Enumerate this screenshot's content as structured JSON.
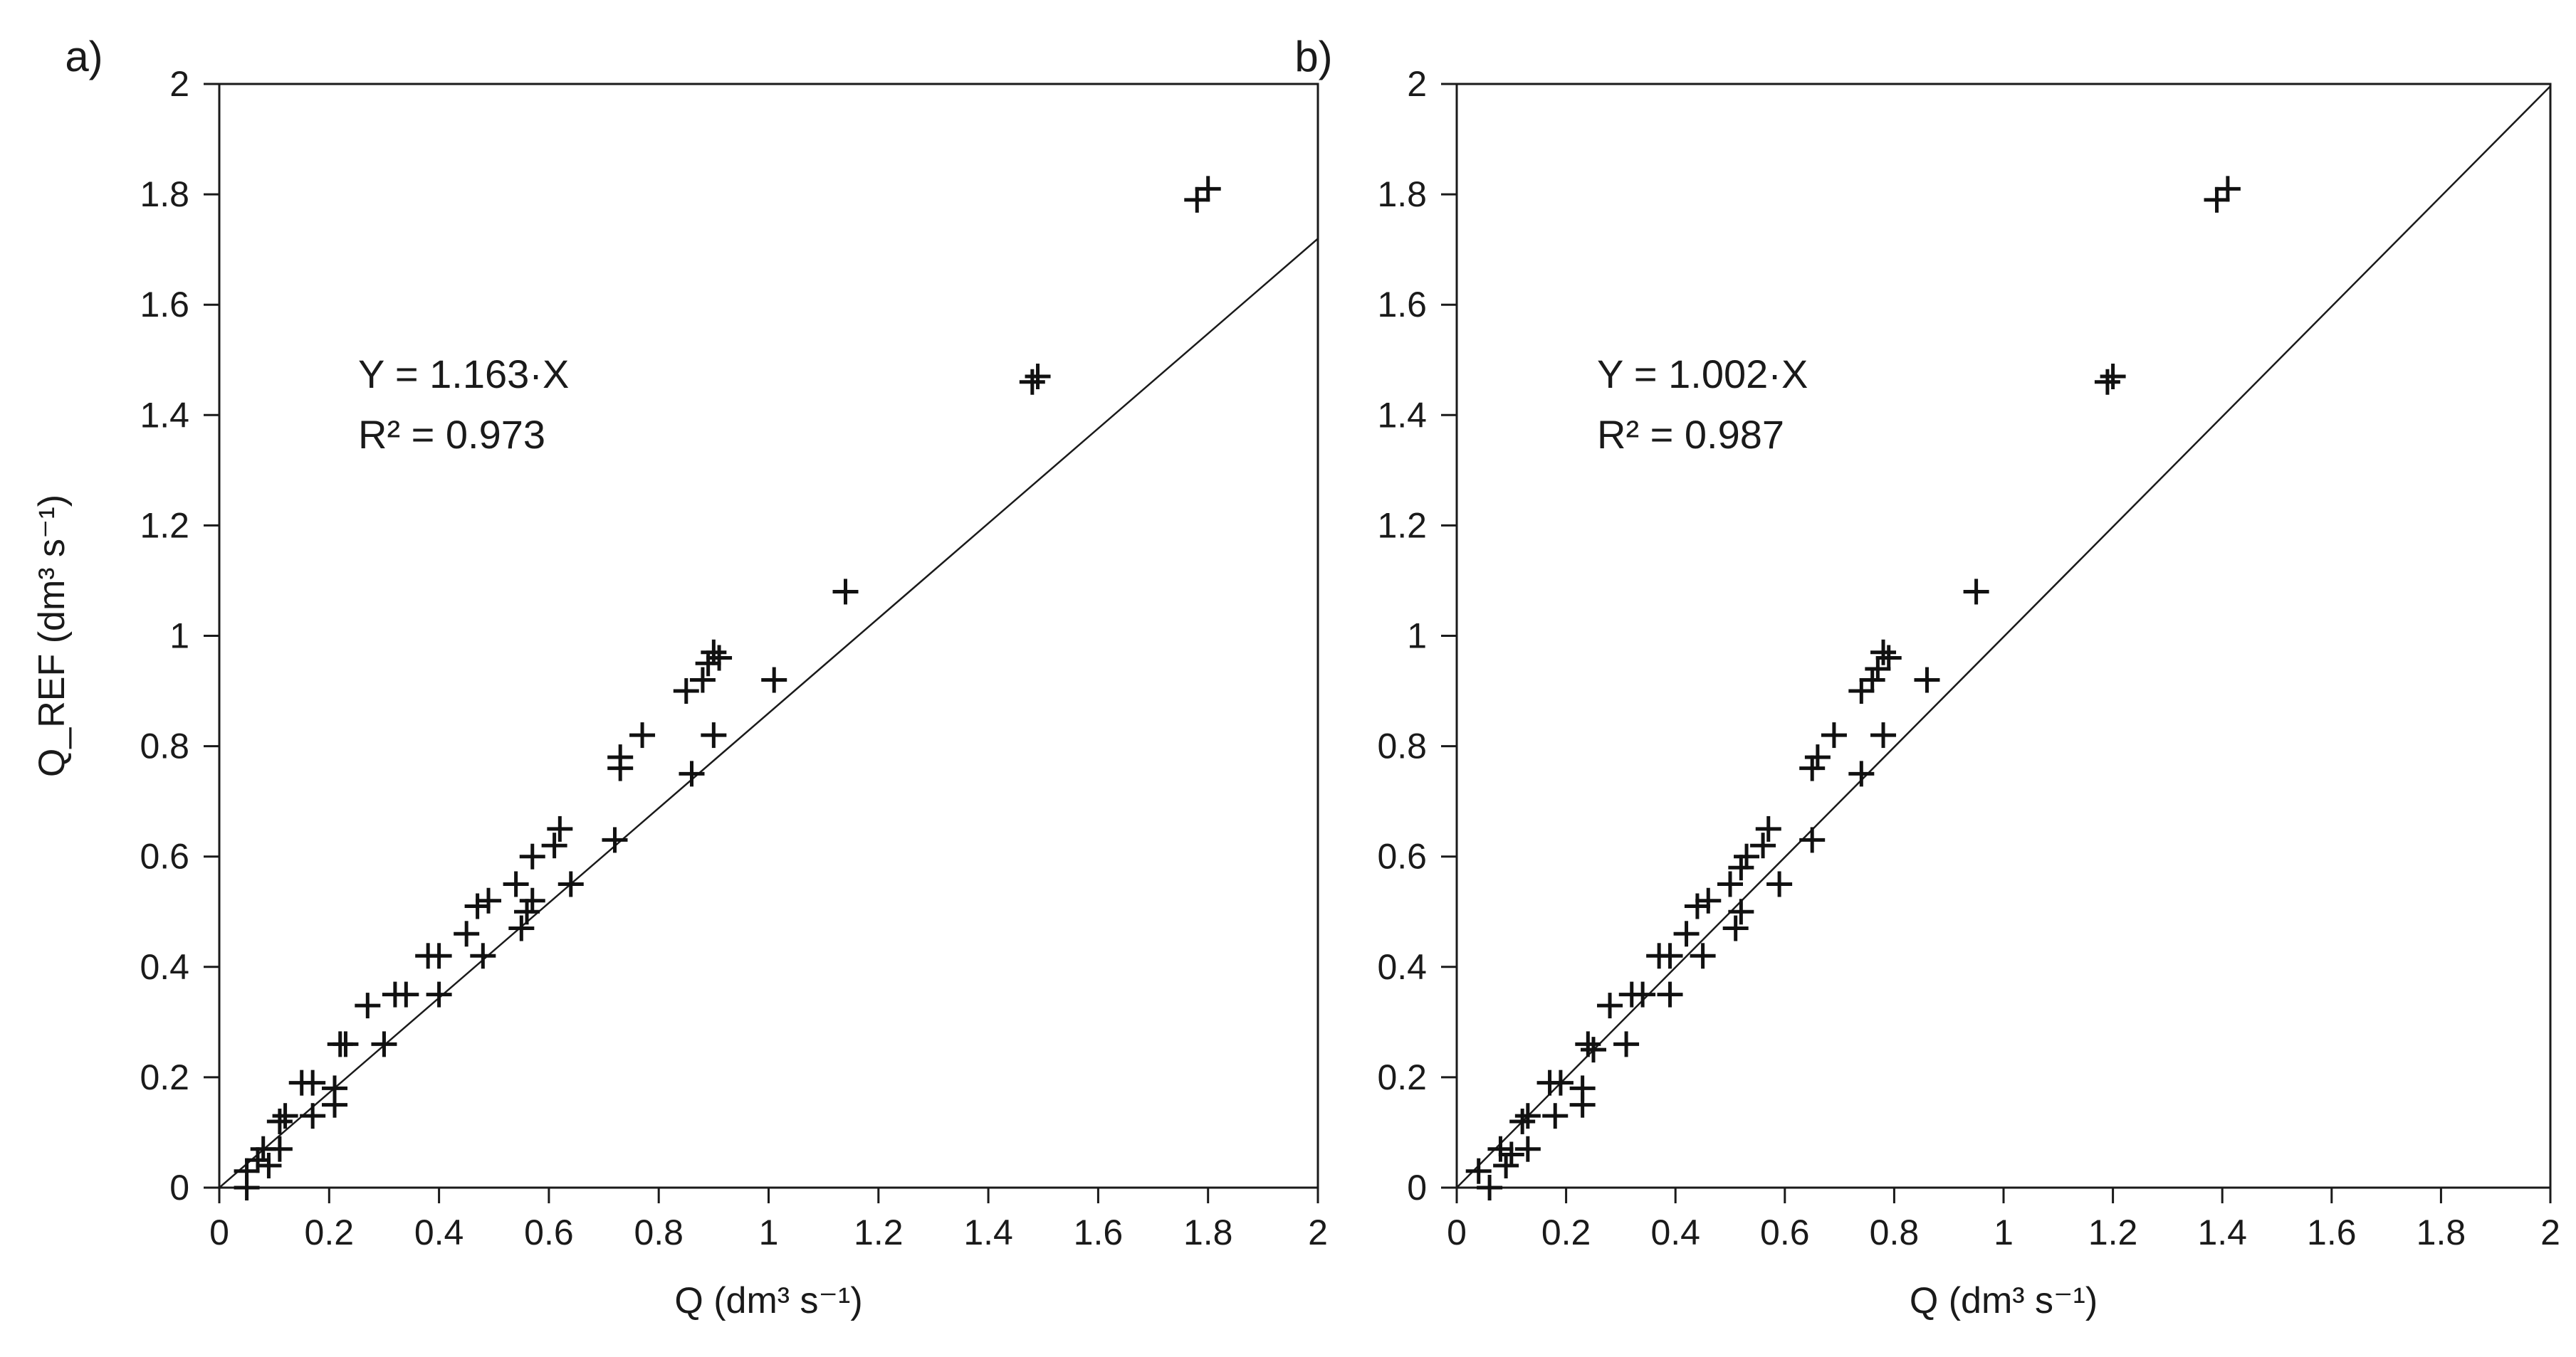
{
  "chart_data": [
    {
      "type": "scatter",
      "panel_label": "a)",
      "xlabel": "Q (dm³ s⁻¹)",
      "ylabel": "Q_REF (dm³ s⁻¹)",
      "xlim": [
        0,
        2
      ],
      "ylim": [
        0,
        2
      ],
      "xticks": [
        "0",
        "0.2",
        "0.4",
        "0.6",
        "0.8",
        "1",
        "1.2",
        "1.4",
        "1.6",
        "1.8",
        "2"
      ],
      "yticks": [
        "0",
        "0.2",
        "0.4",
        "0.6",
        "0.8",
        "1",
        "1.2",
        "1.4",
        "1.6",
        "1.8",
        "2"
      ],
      "grid": false,
      "fit_slope": 1.163,
      "annotations": [
        "Y = 1.163·X",
        "R² = 0.973"
      ],
      "points": [
        [
          0.05,
          0.0
        ],
        [
          0.05,
          0.03
        ],
        [
          0.07,
          0.05
        ],
        [
          0.08,
          0.07
        ],
        [
          0.09,
          0.04
        ],
        [
          0.11,
          0.07
        ],
        [
          0.11,
          0.12
        ],
        [
          0.12,
          0.13
        ],
        [
          0.15,
          0.19
        ],
        [
          0.17,
          0.13
        ],
        [
          0.17,
          0.19
        ],
        [
          0.21,
          0.15
        ],
        [
          0.21,
          0.18
        ],
        [
          0.22,
          0.26
        ],
        [
          0.23,
          0.26
        ],
        [
          0.27,
          0.33
        ],
        [
          0.3,
          0.26
        ],
        [
          0.32,
          0.35
        ],
        [
          0.34,
          0.35
        ],
        [
          0.38,
          0.42
        ],
        [
          0.4,
          0.42
        ],
        [
          0.4,
          0.35
        ],
        [
          0.45,
          0.46
        ],
        [
          0.47,
          0.51
        ],
        [
          0.48,
          0.42
        ],
        [
          0.49,
          0.52
        ],
        [
          0.54,
          0.55
        ],
        [
          0.55,
          0.47
        ],
        [
          0.56,
          0.5
        ],
        [
          0.57,
          0.52
        ],
        [
          0.57,
          0.6
        ],
        [
          0.61,
          0.62
        ],
        [
          0.62,
          0.65
        ],
        [
          0.64,
          0.55
        ],
        [
          0.72,
          0.63
        ],
        [
          0.73,
          0.76
        ],
        [
          0.73,
          0.78
        ],
        [
          0.77,
          0.82
        ],
        [
          0.85,
          0.9
        ],
        [
          0.86,
          0.75
        ],
        [
          0.88,
          0.92
        ],
        [
          0.89,
          0.95
        ],
        [
          0.9,
          0.97
        ],
        [
          0.9,
          0.82
        ],
        [
          0.91,
          0.96
        ],
        [
          1.01,
          0.92
        ],
        [
          1.14,
          1.08
        ],
        [
          1.48,
          1.46
        ],
        [
          1.49,
          1.47
        ],
        [
          1.78,
          1.79
        ],
        [
          1.8,
          1.81
        ]
      ]
    },
    {
      "type": "scatter",
      "panel_label": "b)",
      "xlabel": "Q (dm³ s⁻¹)",
      "ylabel": "",
      "xlim": [
        0,
        2
      ],
      "ylim": [
        0,
        2
      ],
      "xticks": [
        "0",
        "0.2",
        "0.4",
        "0.6",
        "0.8",
        "1",
        "1.2",
        "1.4",
        "1.6",
        "1.8",
        "2"
      ],
      "yticks": [
        "0",
        "0.2",
        "0.4",
        "0.6",
        "0.8",
        "1",
        "1.2",
        "1.4",
        "1.6",
        "1.8",
        "2"
      ],
      "grid": false,
      "fit_slope": 1.002,
      "annotations": [
        "Y = 1.002·X",
        "R² = 0.987"
      ],
      "points": [
        [
          0.04,
          0.03
        ],
        [
          0.06,
          0.0
        ],
        [
          0.08,
          0.07
        ],
        [
          0.09,
          0.04
        ],
        [
          0.1,
          0.06
        ],
        [
          0.12,
          0.12
        ],
        [
          0.13,
          0.13
        ],
        [
          0.13,
          0.07
        ],
        [
          0.17,
          0.19
        ],
        [
          0.18,
          0.13
        ],
        [
          0.19,
          0.19
        ],
        [
          0.23,
          0.15
        ],
        [
          0.23,
          0.18
        ],
        [
          0.24,
          0.26
        ],
        [
          0.25,
          0.25
        ],
        [
          0.28,
          0.33
        ],
        [
          0.31,
          0.26
        ],
        [
          0.32,
          0.35
        ],
        [
          0.34,
          0.35
        ],
        [
          0.37,
          0.42
        ],
        [
          0.39,
          0.42
        ],
        [
          0.39,
          0.35
        ],
        [
          0.42,
          0.46
        ],
        [
          0.44,
          0.51
        ],
        [
          0.45,
          0.42
        ],
        [
          0.46,
          0.52
        ],
        [
          0.5,
          0.55
        ],
        [
          0.51,
          0.47
        ],
        [
          0.52,
          0.5
        ],
        [
          0.52,
          0.58
        ],
        [
          0.53,
          0.6
        ],
        [
          0.56,
          0.62
        ],
        [
          0.57,
          0.65
        ],
        [
          0.59,
          0.55
        ],
        [
          0.65,
          0.63
        ],
        [
          0.65,
          0.76
        ],
        [
          0.66,
          0.78
        ],
        [
          0.69,
          0.82
        ],
        [
          0.74,
          0.9
        ],
        [
          0.74,
          0.75
        ],
        [
          0.76,
          0.92
        ],
        [
          0.77,
          0.94
        ],
        [
          0.78,
          0.97
        ],
        [
          0.78,
          0.82
        ],
        [
          0.79,
          0.96
        ],
        [
          0.86,
          0.92
        ],
        [
          0.95,
          1.08
        ],
        [
          1.19,
          1.46
        ],
        [
          1.2,
          1.47
        ],
        [
          1.39,
          1.79
        ],
        [
          1.41,
          1.81
        ]
      ]
    }
  ]
}
